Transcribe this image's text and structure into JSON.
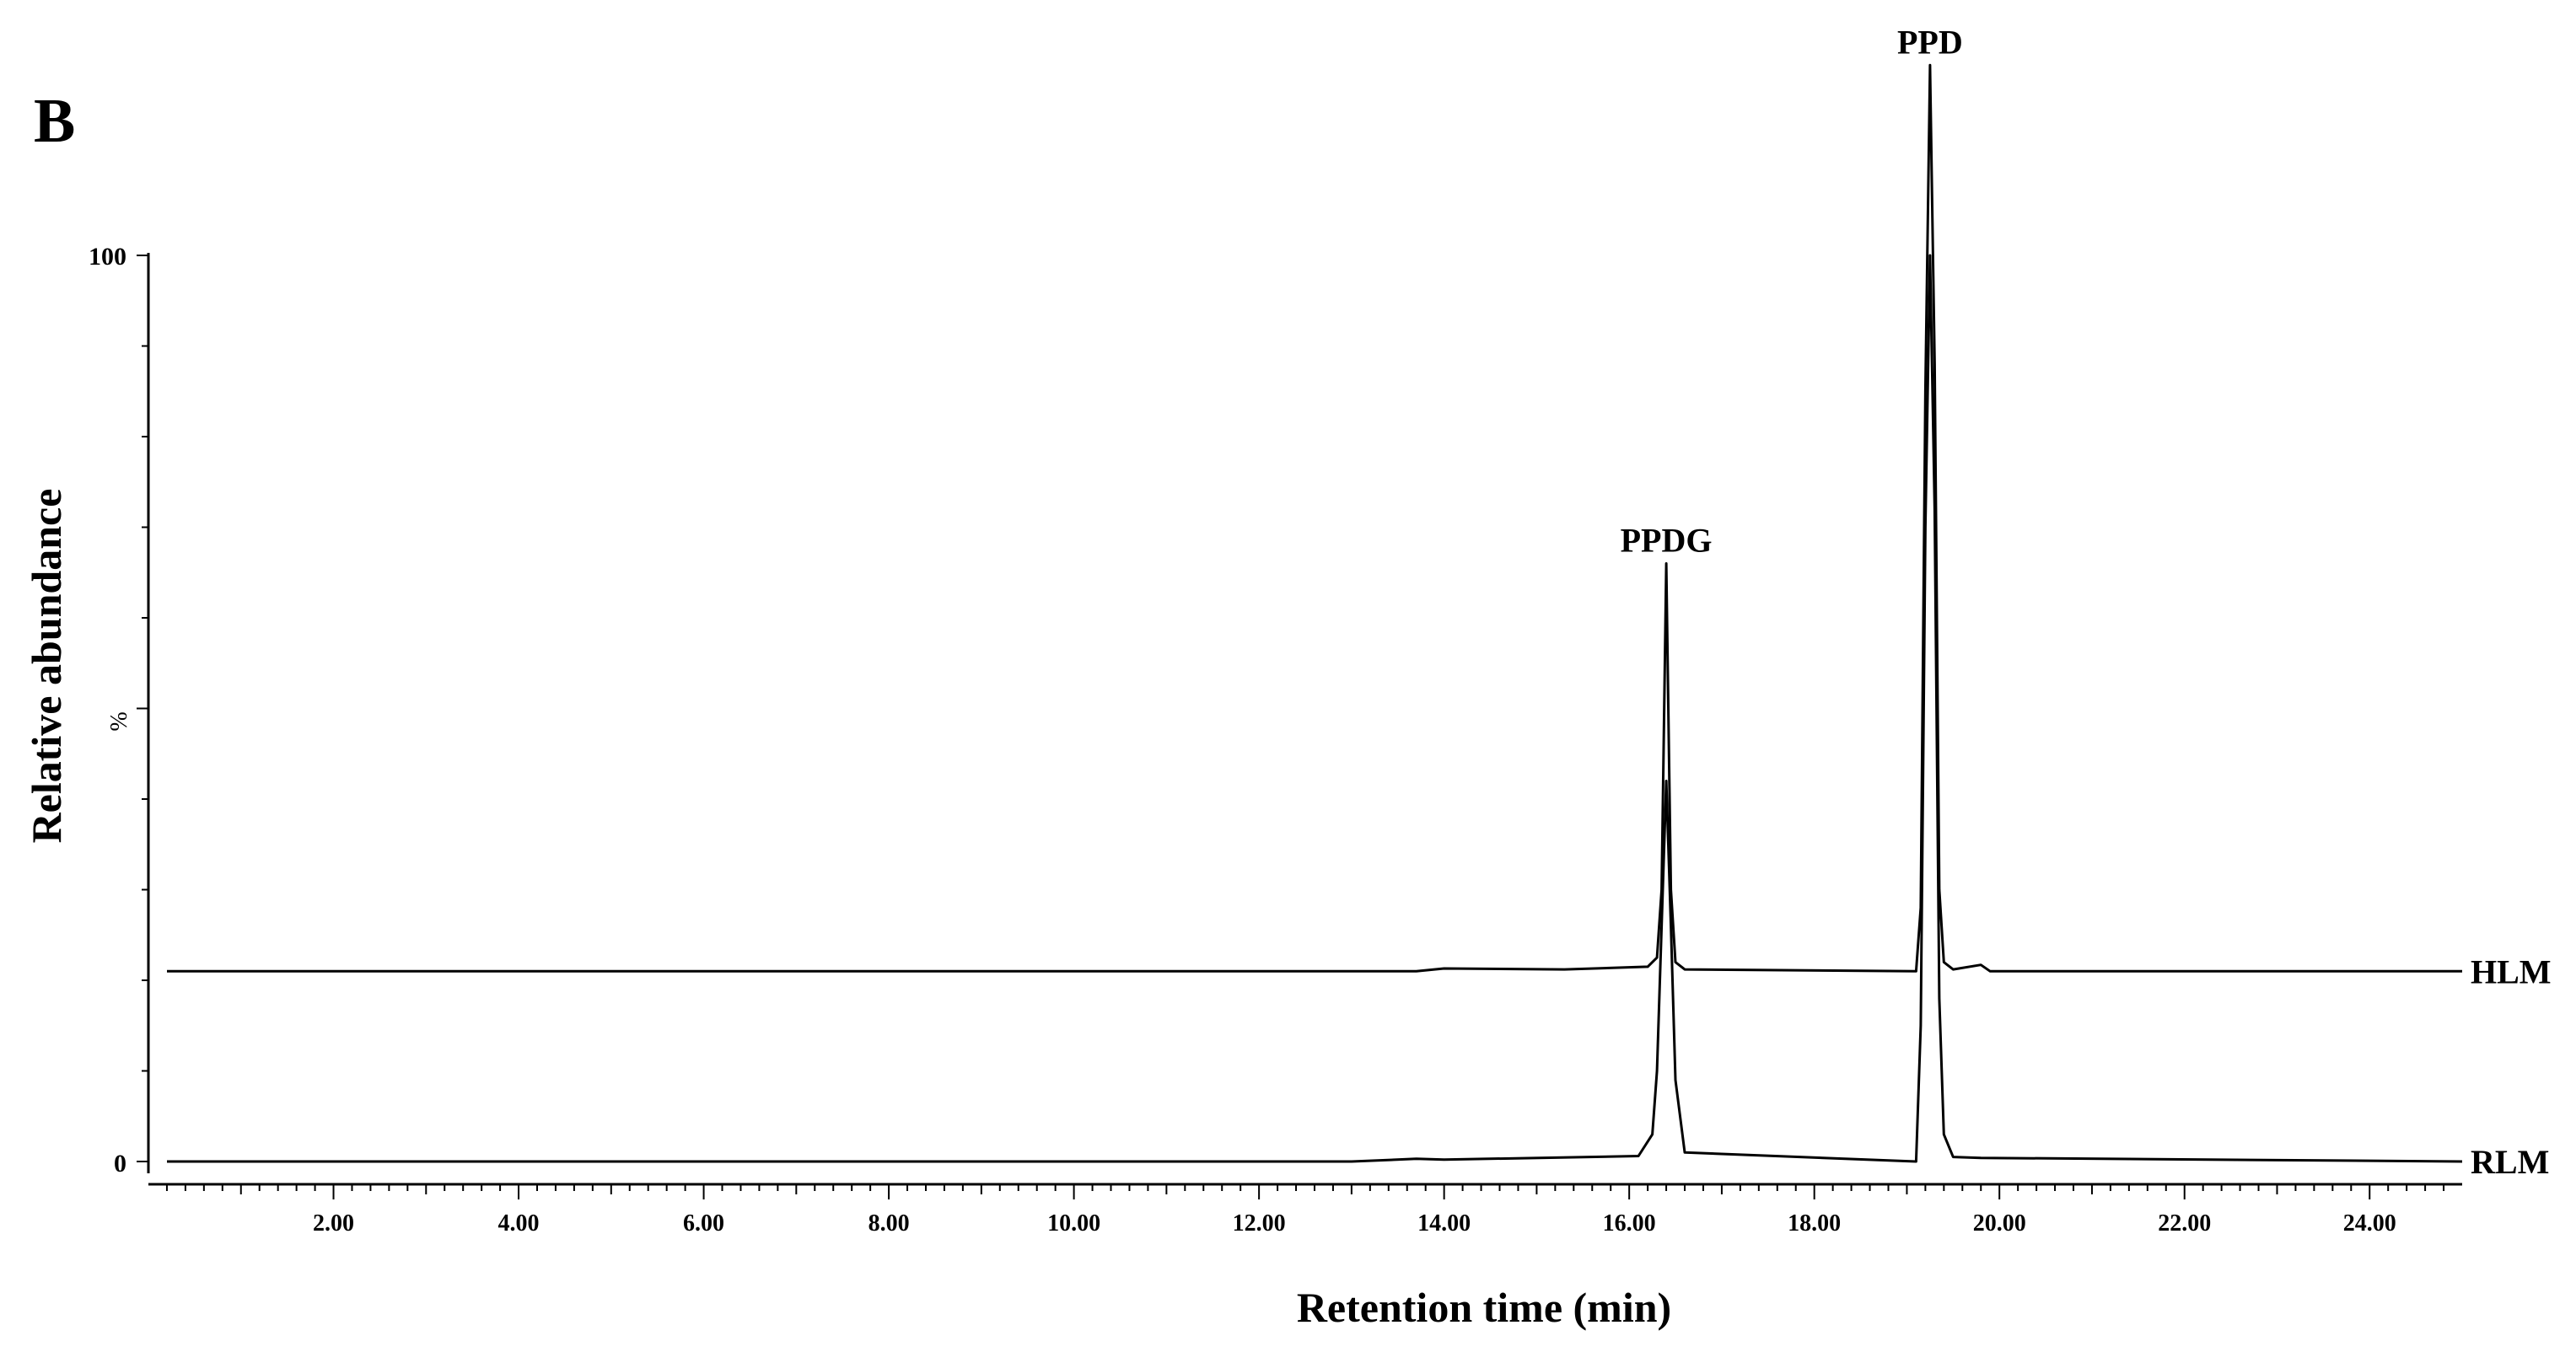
{
  "panel_label": "B",
  "chart_data": {
    "type": "line",
    "xlabel": "Retention time (min)",
    "ylabel": "Relative abundance",
    "y_unit_label": "%",
    "xlim": [
      0,
      25
    ],
    "ylim": [
      0,
      100
    ],
    "x_ticks": [
      "2.00",
      "4.00",
      "6.00",
      "8.00",
      "10.00",
      "12.00",
      "14.00",
      "16.00",
      "18.00",
      "20.00",
      "22.00",
      "24.00"
    ],
    "y_ticks": [
      "0",
      "100"
    ],
    "grid": false,
    "series": [
      {
        "name": "HLM",
        "baseline": 21,
        "x": [
          0.2,
          13.7,
          14.0,
          15.3,
          16.2,
          16.3,
          16.35,
          16.4,
          16.45,
          16.5,
          16.6,
          19.1,
          19.15,
          19.2,
          19.25,
          19.3,
          19.35,
          19.4,
          19.5,
          19.8,
          19.9,
          25.0
        ],
        "y": [
          21,
          21,
          21.3,
          21.2,
          21.5,
          22.5,
          30,
          66,
          30,
          22,
          21.2,
          21,
          28,
          85,
          121,
          88,
          30,
          22,
          21.2,
          21.7,
          21,
          21
        ]
      },
      {
        "name": "RLM",
        "baseline": 0,
        "x": [
          0.2,
          13.0,
          13.7,
          14.0,
          16.1,
          16.25,
          16.3,
          16.35,
          16.4,
          16.45,
          16.5,
          16.6,
          19.1,
          19.15,
          19.2,
          19.25,
          19.3,
          19.35,
          19.4,
          19.5,
          19.8,
          25.0
        ],
        "y": [
          0,
          0,
          0.3,
          0.2,
          0.6,
          3,
          10,
          26,
          42,
          26,
          9,
          1,
          0,
          15,
          70,
          100,
          72,
          18,
          3,
          0.5,
          0.4,
          0
        ]
      }
    ],
    "annotations": [
      {
        "text": "PPDG",
        "x": 16.4,
        "y": 66
      },
      {
        "text": "PPD",
        "x": 19.25,
        "y": 121
      }
    ]
  }
}
